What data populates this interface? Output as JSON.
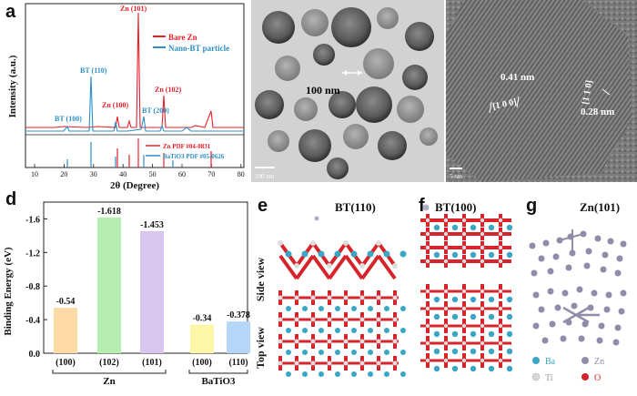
{
  "panels": {
    "a": "a",
    "b": "b",
    "c": "c",
    "d": "d",
    "e": "e",
    "f": "f",
    "g": "g"
  },
  "xrd": {
    "xlabel": "2θ (Degree)",
    "ylabel": "Intensity (a.u.)",
    "xticks": [
      "10",
      "20",
      "30",
      "40",
      "50",
      "60",
      "70",
      "80"
    ],
    "legend": [
      "Bare Zn",
      "Nano-BT particle"
    ],
    "pdf_labels": [
      "Zn PDF #04-0831",
      "BaTiO3 PDF #05-0626"
    ],
    "peak_labels": [
      "Zn (101)",
      "BT (110)",
      "Zn (100)",
      "Zn (102)",
      "BT (100)",
      "BT (200)"
    ],
    "colors": {
      "zn": "#e8202a",
      "bt": "#2f8fc4"
    }
  },
  "tem_b": {
    "scale_label": "100 nm",
    "bar_label": "100 nm"
  },
  "tem_c": {
    "spacing_1": "0.41 nm",
    "plane_1": "[1 0 0]",
    "spacing_2": "0.28 nm",
    "plane_2": "[1 1 0]",
    "scale_label": "5 nm"
  },
  "chart_data": {
    "type": "bar",
    "ylabel": "Binding Energy (eV)",
    "categories": [
      "(100)",
      "(102)",
      "(101)",
      "(100)",
      "(110)"
    ],
    "groups": [
      "Zn",
      "BaTiO3"
    ],
    "values": [
      -0.54,
      -1.618,
      -1.453,
      -0.34,
      -0.378
    ],
    "value_labels": [
      "-0.54",
      "-1.618",
      "-1.453",
      "-0.34",
      "-0.378"
    ],
    "colors": [
      "#fdd9a6",
      "#b6edb0",
      "#d9c6ef",
      "#fdf6a6",
      "#b6d6f9"
    ],
    "yticks": [
      "-1.6",
      "-1.2",
      "-0.8",
      "-0.4",
      "0.0"
    ],
    "ylim": [
      0,
      -1.8
    ]
  },
  "structures": {
    "e_title": "BT(110)",
    "f_title": "BT(100)",
    "g_title": "Zn(101)",
    "side_view": "Side view",
    "top_view": "Top view",
    "legend": [
      "Ba",
      "Zn",
      "Ti",
      "O"
    ]
  }
}
